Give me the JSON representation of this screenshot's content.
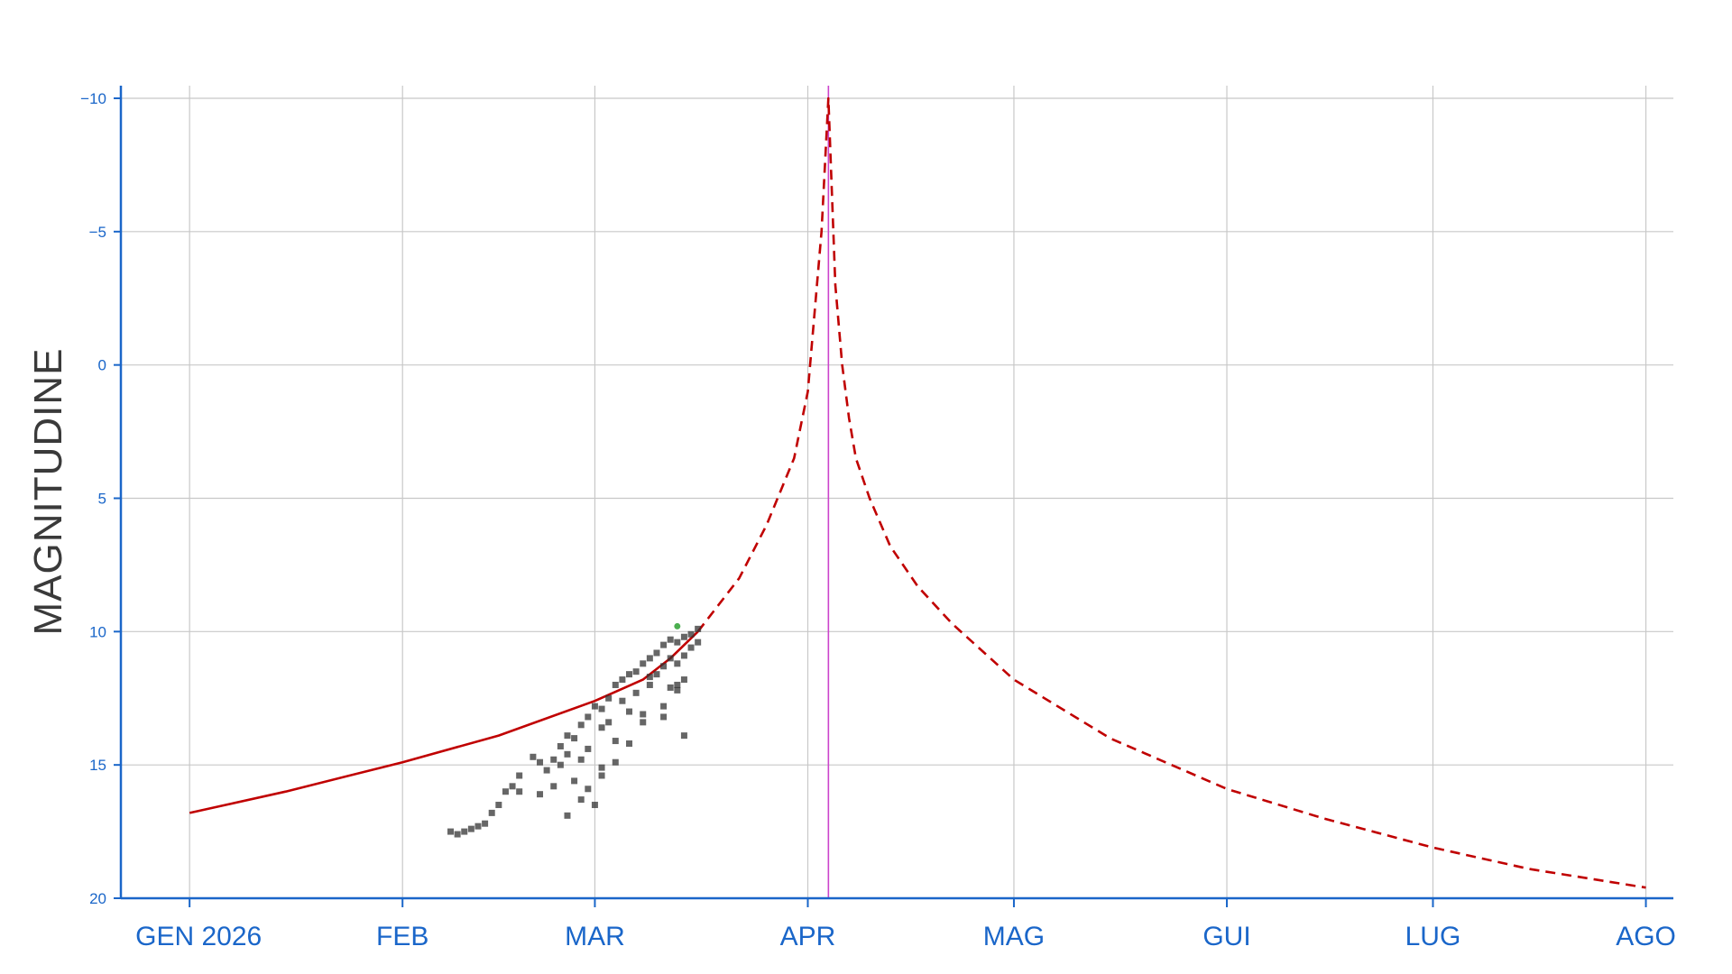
{
  "chart_data": {
    "type": "scatter",
    "title": "",
    "xlabel": "",
    "ylabel": "MAGNITUDINE",
    "y_reversed": true,
    "ylim": [
      20,
      -10
    ],
    "yticks": [
      -10,
      -5,
      0,
      5,
      10,
      15,
      20
    ],
    "ytick_labels": [
      "−10",
      "−5",
      "0",
      "5",
      "10",
      "15",
      "20"
    ],
    "xlim": [
      "2025-12-22",
      "2026-08-05"
    ],
    "xticks": [
      {
        "date": "2026-01-01",
        "label": "GEN 2026"
      },
      {
        "date": "2026-02-01",
        "label": "FEB"
      },
      {
        "date": "2026-03-01",
        "label": "MAR"
      },
      {
        "date": "2026-04-01",
        "label": "APR"
      },
      {
        "date": "2026-05-01",
        "label": "MAG"
      },
      {
        "date": "2026-06-01",
        "label": "GUI"
      },
      {
        "date": "2026-07-01",
        "label": "LUG"
      },
      {
        "date": "2026-08-01",
        "label": "AGO"
      }
    ],
    "grid": true,
    "colors": {
      "axis": "#1a66c9",
      "grid": "#c8c8c8",
      "curve": "#c00000",
      "marker_line": "#cc44cc",
      "points": "#333333",
      "highlight_point": "#4caf50"
    },
    "vertical_marker": {
      "date": "2026-04-04"
    },
    "series": [
      {
        "type": "line",
        "style": "solid",
        "x": [
          "2026-01-01",
          "2026-01-15",
          "2026-02-01",
          "2026-02-15",
          "2026-03-01",
          "2026-03-08",
          "2026-03-12",
          "2026-03-16"
        ],
        "y": [
          16.8,
          16.0,
          14.9,
          13.9,
          12.6,
          11.8,
          11.0,
          10.0
        ]
      },
      {
        "type": "line",
        "style": "dashed",
        "x": [
          "2026-03-16",
          "2026-03-22",
          "2026-03-26",
          "2026-03-30",
          "2026-04-01",
          "2026-04-02",
          "2026-04-03",
          "2026-04-04",
          "2026-04-05",
          "2026-04-06",
          "2026-04-07",
          "2026-04-08",
          "2026-04-10",
          "2026-04-13",
          "2026-04-17",
          "2026-04-22",
          "2026-05-01",
          "2026-05-15",
          "2026-06-01",
          "2026-06-15",
          "2026-07-01",
          "2026-07-15",
          "2026-08-01"
        ],
        "y": [
          10.0,
          8.0,
          6.0,
          3.5,
          1.0,
          -2.0,
          -5.0,
          -10.0,
          -3.0,
          0.0,
          2.0,
          3.5,
          5.0,
          6.8,
          8.3,
          9.7,
          11.8,
          14.0,
          15.9,
          17.0,
          18.1,
          18.9,
          19.6
        ]
      },
      {
        "type": "scatter",
        "x": [
          "2026-02-08",
          "2026-02-09",
          "2026-02-10",
          "2026-02-11",
          "2026-02-12",
          "2026-02-13",
          "2026-02-14",
          "2026-02-15",
          "2026-02-16",
          "2026-02-17",
          "2026-02-18",
          "2026-02-18",
          "2026-02-20",
          "2026-02-21",
          "2026-02-22",
          "2026-02-23",
          "2026-02-24",
          "2026-02-24",
          "2026-02-25",
          "2026-02-25",
          "2026-02-26",
          "2026-02-26",
          "2026-02-27",
          "2026-02-27",
          "2026-02-28",
          "2026-02-28",
          "2026-02-28",
          "2026-03-01",
          "2026-03-01",
          "2026-03-02",
          "2026-03-02",
          "2026-03-02",
          "2026-03-03",
          "2026-03-03",
          "2026-03-04",
          "2026-03-04",
          "2026-03-05",
          "2026-03-05",
          "2026-03-06",
          "2026-03-06",
          "2026-03-07",
          "2026-03-07",
          "2026-03-08",
          "2026-03-08",
          "2026-03-09",
          "2026-03-09",
          "2026-03-10",
          "2026-03-10",
          "2026-03-11",
          "2026-03-11",
          "2026-03-11",
          "2026-03-12",
          "2026-03-12",
          "2026-03-12",
          "2026-03-13",
          "2026-03-13",
          "2026-03-13",
          "2026-03-14",
          "2026-03-14",
          "2026-03-14",
          "2026-03-15",
          "2026-03-15",
          "2026-03-16",
          "2026-03-16",
          "2026-03-11",
          "2026-03-14",
          "2026-02-25",
          "2026-02-27",
          "2026-03-02",
          "2026-03-04",
          "2026-03-06",
          "2026-03-08",
          "2026-02-23",
          "2026-02-21",
          "2026-03-09",
          "2026-03-13"
        ],
        "y": [
          17.5,
          17.6,
          17.5,
          17.4,
          17.3,
          17.2,
          16.8,
          16.5,
          16.0,
          15.8,
          15.4,
          16.0,
          14.7,
          14.9,
          15.2,
          14.8,
          14.3,
          15.0,
          13.9,
          14.6,
          14.0,
          15.6,
          13.5,
          14.8,
          13.2,
          14.4,
          15.9,
          12.8,
          16.5,
          12.9,
          13.6,
          15.4,
          12.5,
          13.4,
          12.0,
          14.1,
          11.8,
          12.6,
          11.6,
          13.0,
          11.5,
          12.3,
          11.2,
          13.1,
          11.0,
          12.0,
          10.8,
          11.6,
          10.5,
          11.3,
          12.8,
          10.3,
          11.0,
          12.1,
          10.4,
          11.2,
          12.0,
          10.2,
          10.9,
          11.8,
          10.1,
          10.6,
          9.9,
          10.4,
          13.2,
          13.9,
          16.9,
          16.3,
          15.1,
          14.9,
          14.2,
          13.4,
          15.8,
          16.1,
          11.7,
          12.2
        ]
      }
    ],
    "highlight_point": {
      "x": "2026-03-13",
      "y": 9.8
    }
  }
}
